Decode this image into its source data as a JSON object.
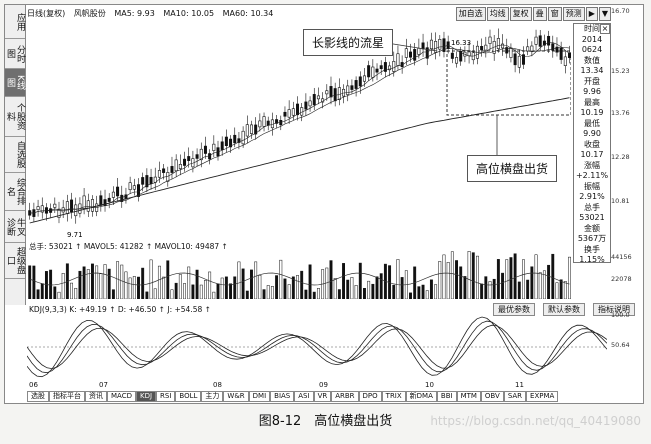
{
  "sidebar": [
    "应用",
    "分时图",
    "K线图",
    "个股资料",
    "自选股",
    "综合排名",
    "牛叉诊断",
    "超级盘口"
  ],
  "header": {
    "chart_mode": "日线(复权)",
    "stock": "风帆股份",
    "ma5": "MA5: 9.93",
    "ma10": "MA10: 10.05",
    "ma60": "MA60: 10.34"
  },
  "header_buttons": [
    "加自选",
    "均线",
    "复权",
    "叠",
    "窗",
    "预测",
    "▶",
    "▼"
  ],
  "price_axis": [
    "16.70",
    "15.23",
    "13.76",
    "12.28",
    "10.81"
  ],
  "callouts": {
    "shadow": "长影线的流星",
    "consolidation": "高位横盘出货"
  },
  "price_marks": {
    "high": "16.33",
    "low": "9.71"
  },
  "info_panel": [
    "时间",
    "2014",
    "0624",
    "数值",
    "13.34",
    "开盘",
    "9.96",
    "最高",
    "10.19",
    "最低",
    "9.90",
    "收盘",
    "10.17",
    "涨幅",
    "+2.11%",
    "振幅",
    "2.91%",
    "总手",
    "53021",
    "金额",
    "5367万",
    "换手",
    "1.15%"
  ],
  "volume": {
    "header": "总手: 53021 ↑ MAVOL5: 41282 ↑ MAVOL10: 49487 ↑",
    "axis": [
      "44156",
      "22078"
    ],
    "tabs": [
      "最优参数",
      "默认参数",
      "指标说明"
    ]
  },
  "kdj": {
    "header": "KDJ(9,3,3) K: +49.19 ↑ D: +46.50 ↑ J: +54.58 ↑",
    "axis": [
      "100.0",
      "50.64"
    ]
  },
  "date_axis": [
    "06",
    "07",
    "08",
    "09",
    "10",
    "11"
  ],
  "bottom_tabs": [
    "选股",
    "指标平台",
    "资讯",
    "MACD",
    "KDJ",
    "RSI",
    "BOLL",
    "主力",
    "W&R",
    "DMI",
    "BIAS",
    "ASI",
    "VR",
    "ARBR",
    "DPO",
    "TRIX",
    "新DMA",
    "BBI",
    "MTM",
    "OBV",
    "SAR",
    "EXPMA"
  ],
  "active_tab": "KDJ",
  "caption": "图8-12　高位横盘出货",
  "watermark": "https://blog.csdn.net/qq_40419080"
}
